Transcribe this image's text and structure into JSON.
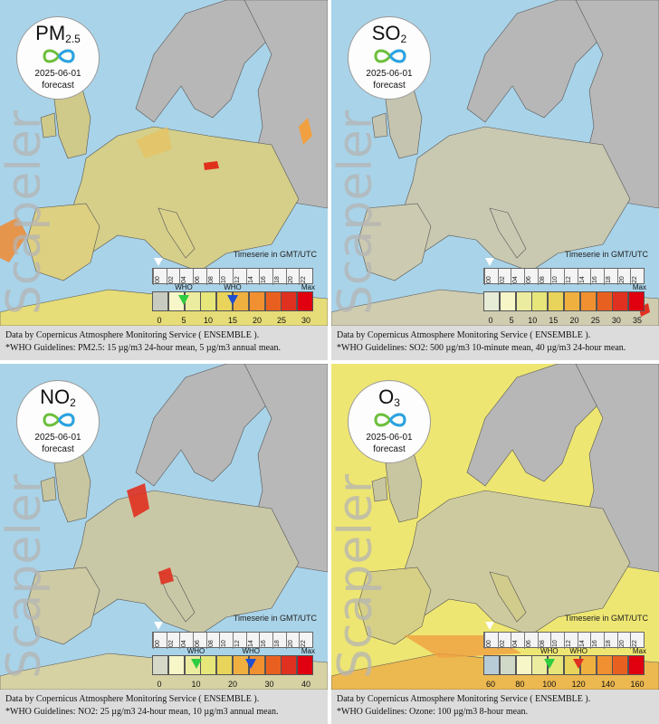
{
  "brand": "Scapeler",
  "timeseries_note": "Timeserie in GMT/UTC",
  "data_source": "Data by Copernicus Atmosphere Monitoring Service ( ENSEMBLE ).",
  "panels": [
    {
      "id": "pm25",
      "pollutant_main": "PM",
      "pollutant_sub": "2.5",
      "date": "2025-06-01",
      "forecast": "forecast",
      "scale_values": [
        "0",
        "5",
        "10",
        "15",
        "20",
        "25",
        "30"
      ],
      "scale_colors": [
        "#c8ccc0",
        "#f6f6c8",
        "#ececa0",
        "#e6e67a",
        "#e8d45a",
        "#f0b040",
        "#f09030",
        "#e86020",
        "#e03020",
        "#e00010"
      ],
      "who_label": "WHO",
      "who_markers": [
        {
          "value": 5,
          "color": "#2ecc40"
        },
        {
          "value": 15,
          "color": "#1f4fd0"
        }
      ],
      "max_label": "Max",
      "timeline_ticks": [
        "00",
        "02",
        "04",
        "06",
        "08",
        "10",
        "12",
        "14",
        "16",
        "18",
        "20",
        "22"
      ],
      "guideline": "*WHO Guidelines: PM2.5: 15 µg/m3 24-hour mean, 5 µg/m3 annual mean."
    },
    {
      "id": "so2",
      "pollutant_main": "SO",
      "pollutant_sub": "2",
      "date": "2025-06-01",
      "forecast": "forecast",
      "scale_values": [
        "0",
        "5",
        "10",
        "15",
        "20",
        "25",
        "30",
        "35"
      ],
      "scale_colors": [
        "#e6ecd6",
        "#f6f6c8",
        "#ececa0",
        "#e6e67a",
        "#e8d45a",
        "#f0b040",
        "#f09030",
        "#e86020",
        "#e03020",
        "#e00010"
      ],
      "who_label": "",
      "who_markers": [],
      "max_label": "Max",
      "timeline_ticks": [
        "00",
        "02",
        "04",
        "06",
        "08",
        "10",
        "12",
        "14",
        "16",
        "18",
        "20",
        "22"
      ],
      "guideline": "*WHO Guidelines: SO2: 500 µg/m3 10-minute mean, 40 µg/m3 24-hour mean."
    },
    {
      "id": "no2",
      "pollutant_main": "NO",
      "pollutant_sub": "2",
      "date": "2025-06-01",
      "forecast": "forecast",
      "scale_values": [
        "0",
        "10",
        "20",
        "30",
        "40"
      ],
      "scale_colors": [
        "#d6d8c8",
        "#f6f6c8",
        "#ececa0",
        "#e6e67a",
        "#e8d45a",
        "#f0b040",
        "#f09030",
        "#e86020",
        "#e03020",
        "#e00010"
      ],
      "who_label": "WHO",
      "who_markers": [
        {
          "value": 10,
          "color": "#2ecc40"
        },
        {
          "value": 25,
          "color": "#1f4fd0"
        }
      ],
      "max_label": "Max",
      "timeline_ticks": [
        "00",
        "02",
        "04",
        "06",
        "08",
        "10",
        "12",
        "14",
        "16",
        "18",
        "20",
        "22"
      ],
      "guideline": "*WHO Guidelines: NO2: 25 µg/m3 24-hour mean, 10 µg/m3 annual mean."
    },
    {
      "id": "o3",
      "pollutant_main": "O",
      "pollutant_sub": "3",
      "date": "2025-06-01",
      "forecast": "forecast",
      "scale_values": [
        "60",
        "80",
        "100",
        "120",
        "140",
        "160"
      ],
      "scale_colors": [
        "#b8ccd8",
        "#d0d8c8",
        "#f6f6c8",
        "#ececa0",
        "#e6e67a",
        "#e8d45a",
        "#f0b040",
        "#f09030",
        "#e86020",
        "#e00010"
      ],
      "who_label": "WHO",
      "who_markers": [
        {
          "value": 100,
          "color": "#2ecc40"
        },
        {
          "value": 120,
          "color": "#e03020"
        }
      ],
      "max_label": "Max",
      "timeline_ticks": [
        "00",
        "02",
        "04",
        "06",
        "08",
        "10",
        "12",
        "14",
        "16",
        "18",
        "20",
        "22"
      ],
      "guideline": "*WHO Guidelines: Ozone: 100 µg/m3 8-hour mean."
    }
  ],
  "colors": {
    "sea": "#a9d3e8",
    "land": "#b5b5b5",
    "land_pm25": "#d9d28a",
    "land_so2": "#c9c9b0",
    "land_no2": "#c8c8a8",
    "land_o3": "#d8d6a0",
    "sea_o3": "#eee672"
  }
}
